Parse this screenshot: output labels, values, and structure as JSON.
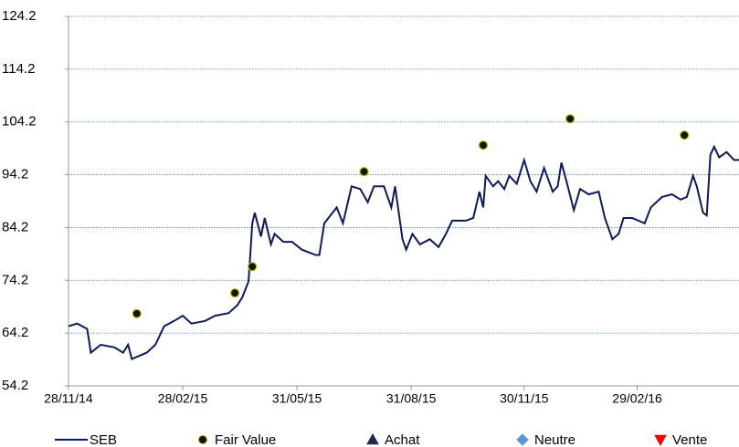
{
  "chart_data": {
    "type": "line",
    "xlim": [
      "28/11/14",
      "21/05/16"
    ],
    "ylim": [
      54.2,
      124.2
    ],
    "yticks": [
      54.2,
      64.2,
      74.2,
      84.2,
      94.2,
      104.2,
      114.2,
      124.2
    ],
    "xticks": [
      "28/11/14",
      "28/02/15",
      "31/05/15",
      "31/08/15",
      "30/11/15",
      "29/02/16"
    ],
    "grid": true,
    "series": [
      {
        "name": "SEB",
        "type": "line",
        "color": "#0d1a5c",
        "x": [
          "28/11/14",
          "05/12/14",
          "13/12/14",
          "16/12/14",
          "24/12/14",
          "04/01/15",
          "11/01/15",
          "15/01/15",
          "18/01/15",
          "30/01/15",
          "06/02/15",
          "13/02/15",
          "21/02/15",
          "28/02/15",
          "07/03/15",
          "18/03/15",
          "26/03/15",
          "06/04/15",
          "13/04/15",
          "17/04/15",
          "22/04/15",
          "25/04/15",
          "27/04/15",
          "02/05/15",
          "05/05/15",
          "10/05/15",
          "13/05/15",
          "20/05/15",
          "27/05/15",
          "04/06/15",
          "15/06/15",
          "18/06/15",
          "22/06/15",
          "02/07/15",
          "07/07/15",
          "14/07/15",
          "21/07/15",
          "27/07/15",
          "01/08/15",
          "09/08/15",
          "15/08/15",
          "18/08/15",
          "24/08/15",
          "27/08/15",
          "01/09/15",
          "07/09/15",
          "15/09/15",
          "22/09/15",
          "28/09/15",
          "03/10/15",
          "14/10/15",
          "20/10/15",
          "25/10/15",
          "28/10/15",
          "30/10/15",
          "05/11/15",
          "09/11/15",
          "14/11/15",
          "18/11/15",
          "24/11/15",
          "30/11/15",
          "05/12/15",
          "10/12/15",
          "16/12/15",
          "23/12/15",
          "27/12/15",
          "30/12/15",
          "03/01/16",
          "09/01/16",
          "14/01/16",
          "21/01/16",
          "29/01/16",
          "03/02/16",
          "09/02/16",
          "14/02/16",
          "18/02/16",
          "25/02/16",
          "06/03/16",
          "11/03/16",
          "20/03/16",
          "28/03/16",
          "04/04/16",
          "09/04/16",
          "14/04/16",
          "17/04/16",
          "22/04/16",
          "25/04/16",
          "28/04/16",
          "01/05/16",
          "05/05/16",
          "11/05/16",
          "17/05/16",
          "21/05/16"
        ],
        "values": [
          65.5,
          66,
          65,
          60.5,
          62,
          61.5,
          60.5,
          62,
          59.3,
          60.5,
          62,
          65.5,
          66.5,
          67.5,
          66,
          66.5,
          67.5,
          68,
          69.5,
          71,
          74,
          85,
          87,
          82.5,
          86,
          81,
          83,
          81.5,
          81.5,
          80,
          79,
          79,
          85,
          88,
          85,
          92,
          91.5,
          89,
          92,
          92,
          88,
          92,
          82,
          80,
          83,
          81,
          82,
          80.5,
          83,
          85.5,
          85.5,
          86,
          91,
          88,
          94,
          92,
          93,
          91.5,
          94,
          92.5,
          97,
          93,
          91,
          95.5,
          91,
          92,
          96.5,
          93,
          87.5,
          91.5,
          90.5,
          91,
          86,
          82,
          83,
          86,
          86,
          85,
          88,
          90,
          90.5,
          89.5,
          90,
          94,
          92,
          87,
          86.5,
          98,
          99.5,
          97.5,
          98.5,
          97,
          97
        ]
      },
      {
        "name": "Fair Value",
        "type": "scatter",
        "marker": "circle",
        "color": "#141400",
        "edgecolor": "#b8b800",
        "x": [
          "22/01/15",
          "11/04/15",
          "25/04/15",
          "24/07/15",
          "28/10/15",
          "06/01/16",
          "07/04/16"
        ],
        "values": [
          67.9,
          71.8,
          76.8,
          94.8,
          99.8,
          104.8,
          101.7
        ]
      },
      {
        "name": "Achat",
        "type": "scatter",
        "marker": "triangle-up",
        "color": "#1f2a4a",
        "x": [],
        "values": []
      },
      {
        "name": "Neutre",
        "type": "scatter",
        "marker": "diamond",
        "color": "#5b9bd5",
        "x": [],
        "values": []
      },
      {
        "name": "Vente",
        "type": "scatter",
        "marker": "triangle-down",
        "color": "#ff0000",
        "x": [],
        "values": []
      }
    ]
  }
}
